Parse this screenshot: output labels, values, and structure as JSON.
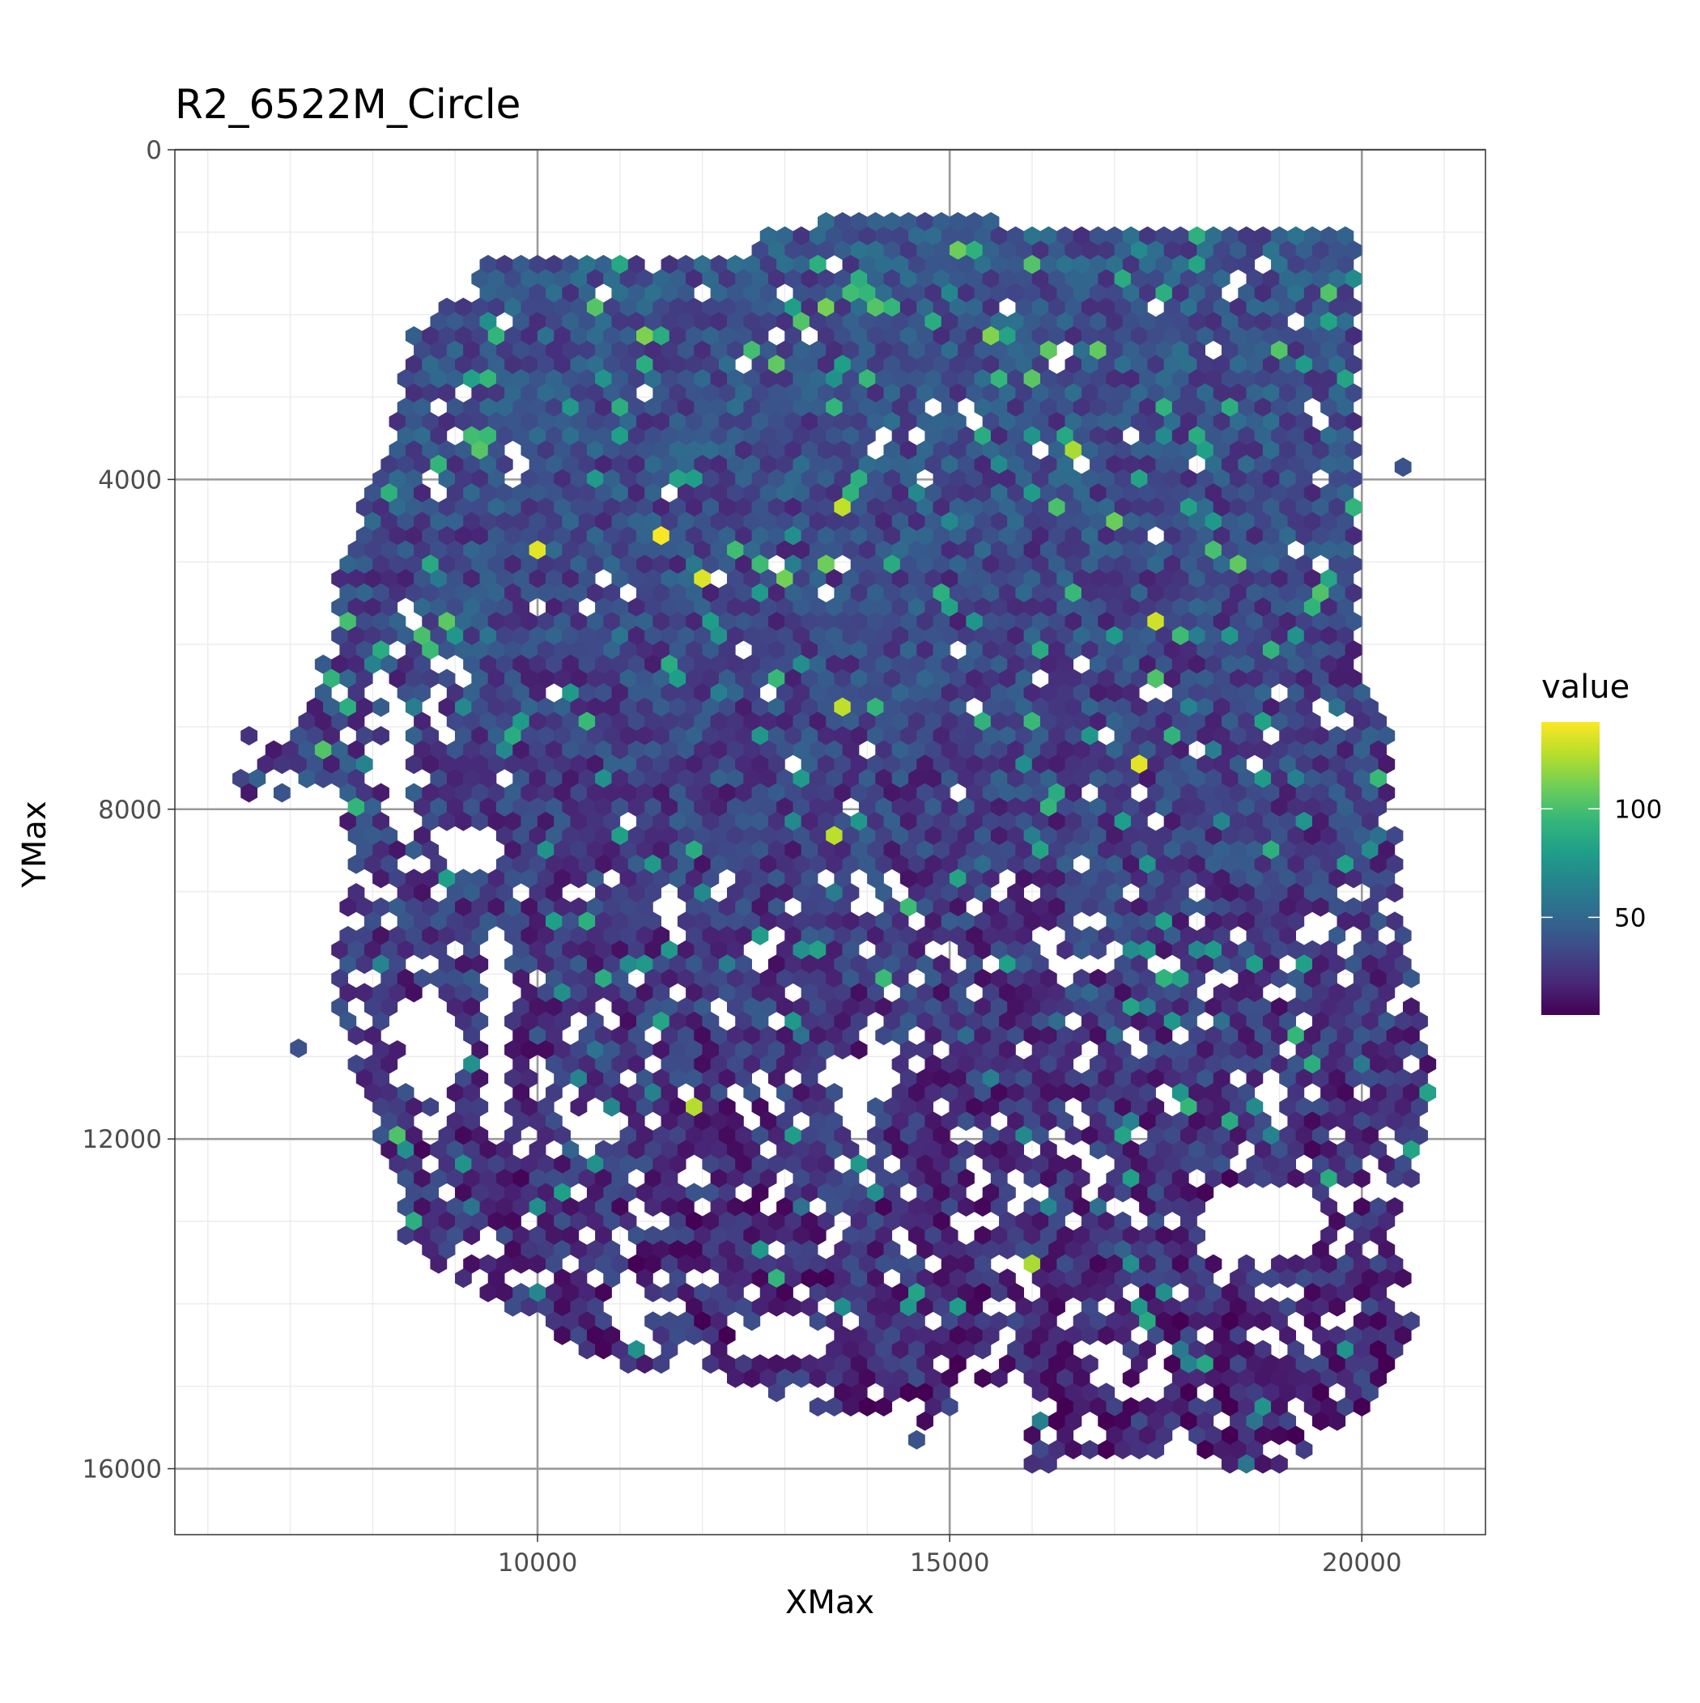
{
  "chart_data": {
    "type": "heatmap",
    "title": "R2_6522M_Circle",
    "xlabel": "XMax",
    "ylabel": "YMax",
    "xlim": [
      5600,
      21500
    ],
    "ylim": [
      16800,
      0
    ],
    "y_reversed": true,
    "x_ticks": [
      10000,
      15000,
      20000
    ],
    "x_tick_labels": [
      "10000",
      "15000",
      "20000"
    ],
    "y_ticks": [
      0,
      4000,
      8000,
      12000,
      16000
    ],
    "y_tick_labels": [
      "0",
      "4000",
      "8000",
      "12000",
      "16000"
    ],
    "grid": true,
    "legend": {
      "title": "value",
      "position": "right",
      "colormap": "viridis",
      "range": [
        5,
        140
      ],
      "ticks": [
        50,
        100
      ],
      "tick_labels": [
        "50",
        "100"
      ],
      "colors": [
        "#440154",
        "#482878",
        "#3e4a89",
        "#31688e",
        "#26828e",
        "#1f9e89",
        "#35b779",
        "#6ece58",
        "#b5de2b",
        "#fde725"
      ]
    },
    "bin_shape": "hexagon",
    "bin_spacing": 200,
    "tissue_outline": [
      [
        8500,
        2200
      ],
      [
        9500,
        1300
      ],
      [
        10600,
        1300
      ],
      [
        12400,
        1300
      ],
      [
        13000,
        900
      ],
      [
        14400,
        800
      ],
      [
        16000,
        900
      ],
      [
        16800,
        1000
      ],
      [
        20000,
        1000
      ],
      [
        20000,
        2000
      ],
      [
        20000,
        3800
      ],
      [
        20000,
        6500
      ],
      [
        20400,
        7300
      ],
      [
        20400,
        8000
      ],
      [
        20500,
        9500
      ],
      [
        20700,
        10500
      ],
      [
        20900,
        11200
      ],
      [
        20700,
        12300
      ],
      [
        20400,
        13000
      ],
      [
        20700,
        14100
      ],
      [
        20300,
        14800
      ],
      [
        20000,
        15300
      ],
      [
        19500,
        15600
      ],
      [
        19200,
        16050
      ],
      [
        18200,
        16050
      ],
      [
        17800,
        15500
      ],
      [
        17400,
        15900
      ],
      [
        16000,
        15950
      ],
      [
        15600,
        15650
      ],
      [
        14200,
        15300
      ],
      [
        13400,
        15300
      ],
      [
        12200,
        14900
      ],
      [
        10800,
        14700
      ],
      [
        9800,
        14100
      ],
      [
        8900,
        13600
      ],
      [
        8400,
        13200
      ],
      [
        8100,
        12100
      ],
      [
        7800,
        11300
      ],
      [
        7600,
        10400
      ],
      [
        7600,
        9700
      ],
      [
        7800,
        8400
      ],
      [
        7500,
        7800
      ],
      [
        7100,
        7800
      ],
      [
        6500,
        8000
      ],
      [
        6300,
        7900
      ],
      [
        6400,
        7400
      ],
      [
        6600,
        6800
      ],
      [
        7200,
        6800
      ],
      [
        7500,
        5900
      ],
      [
        7600,
        5200
      ],
      [
        7800,
        4500
      ],
      [
        8100,
        3900
      ],
      [
        8300,
        3100
      ]
    ],
    "holes": [
      {
        "cx": 18800,
        "cy": 13000,
        "rx": 850,
        "ry": 450
      },
      {
        "cx": 9500,
        "cy": 10800,
        "rx": 200,
        "ry": 1500
      },
      {
        "cx": 13000,
        "cy": 14400,
        "rx": 600,
        "ry": 250
      },
      {
        "cx": 11100,
        "cy": 14000,
        "rx": 220,
        "ry": 500
      },
      {
        "cx": 15500,
        "cy": 15300,
        "rx": 500,
        "ry": 400
      },
      {
        "cx": 9200,
        "cy": 8500,
        "rx": 350,
        "ry": 350
      },
      {
        "cx": 8700,
        "cy": 10800,
        "rx": 380,
        "ry": 650
      },
      {
        "cx": 8300,
        "cy": 7300,
        "rx": 200,
        "ry": 450
      },
      {
        "cx": 13900,
        "cy": 11200,
        "rx": 500,
        "ry": 250
      },
      {
        "cx": 10700,
        "cy": 11800,
        "rx": 450,
        "ry": 200
      }
    ]
  }
}
